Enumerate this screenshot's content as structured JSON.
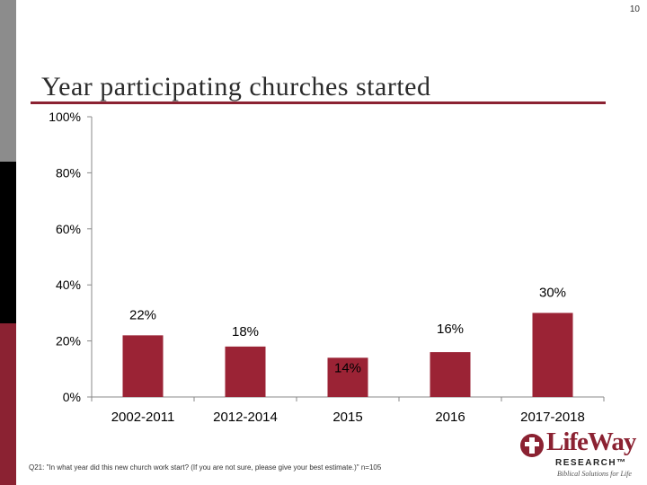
{
  "page_number": "10",
  "title": "Year participating churches started",
  "footnote": "Q21: \"In what year did this new church work start? (If you are not sure, please give your best estimate.)\" n=105",
  "logo": {
    "name": "LifeWay",
    "sub": "RESEARCH™",
    "tagline": "Biblical Solutions for Life"
  },
  "colors": {
    "bar": "#9b2335",
    "accent": "#8b2232",
    "axis": "#888888"
  },
  "chart_data": {
    "type": "bar",
    "title": "Year participating churches started",
    "xlabel": "",
    "ylabel": "",
    "categories": [
      "2002-2011",
      "2012-2014",
      "2015",
      "2016",
      "2017-2018"
    ],
    "values": [
      22,
      18,
      14,
      16,
      30
    ],
    "data_labels": [
      "22%",
      "18%",
      "14%",
      "16%",
      "30%"
    ],
    "ylim": [
      0,
      100
    ],
    "yticks": [
      0,
      20,
      40,
      60,
      80,
      100
    ],
    "ytick_labels": [
      "0%",
      "20%",
      "40%",
      "60%",
      "80%",
      "100%"
    ],
    "grid": false,
    "legend": "none"
  }
}
